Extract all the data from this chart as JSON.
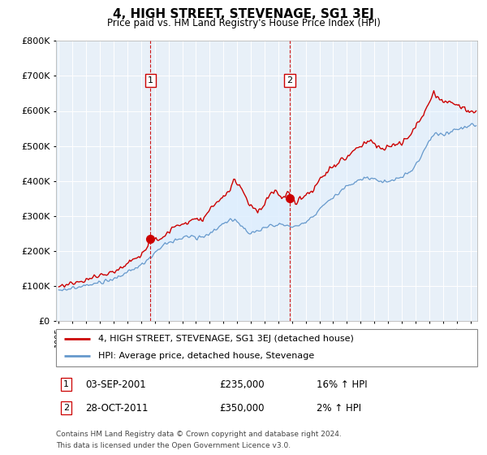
{
  "title": "4, HIGH STREET, STEVENAGE, SG1 3EJ",
  "subtitle": "Price paid vs. HM Land Registry's House Price Index (HPI)",
  "legend_line1": "4, HIGH STREET, STEVENAGE, SG1 3EJ (detached house)",
  "legend_line2": "HPI: Average price, detached house, Stevenage",
  "sale1_label": "1",
  "sale1_date": "03-SEP-2001",
  "sale1_price": "£235,000",
  "sale1_hpi": "16% ↑ HPI",
  "sale1_year": 2001.67,
  "sale1_value": 235000,
  "sale2_label": "2",
  "sale2_date": "28-OCT-2011",
  "sale2_price": "£350,000",
  "sale2_hpi": "2% ↑ HPI",
  "sale2_year": 2011.83,
  "sale2_value": 350000,
  "footer1": "Contains HM Land Registry data © Crown copyright and database right 2024.",
  "footer2": "This data is licensed under the Open Government Licence v3.0.",
  "ylim": [
    0,
    800000
  ],
  "xlim_start": 1995,
  "xlim_end": 2025.5,
  "red_color": "#cc0000",
  "blue_color": "#6699cc",
  "fill_color": "#ddeeff",
  "bg_color": "#e8f0f8",
  "grid_color": "#ffffff",
  "marker_box_color": "#cc0000"
}
